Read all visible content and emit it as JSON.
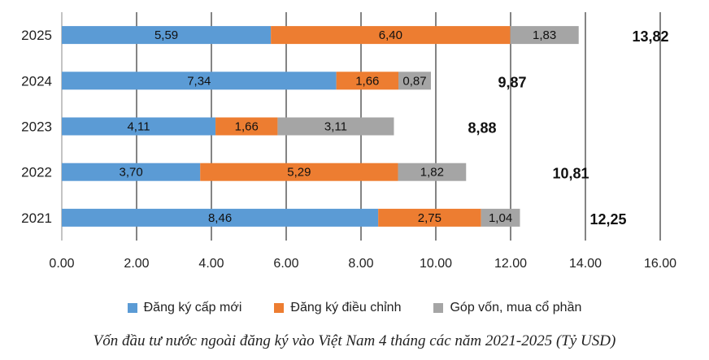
{
  "chart_data": {
    "type": "bar",
    "orientation": "horizontal",
    "stacked": true,
    "categories": [
      "2025",
      "2024",
      "2023",
      "2022",
      "2021"
    ],
    "series": [
      {
        "name": "Đăng ký cấp mới",
        "color": "#5b9bd5",
        "values": [
          5.59,
          7.34,
          4.11,
          3.7,
          8.46
        ],
        "labels": [
          "5,59",
          "7,34",
          "4,11",
          "3,70",
          "8,46"
        ]
      },
      {
        "name": "Đăng ký điều chỉnh",
        "color": "#ed7d31",
        "values": [
          6.4,
          1.66,
          1.66,
          5.29,
          2.75
        ],
        "labels": [
          "6,40",
          "1,66",
          "1,66",
          "5,29",
          "2,75"
        ]
      },
      {
        "name": "Góp vốn, mua cổ phần",
        "color": "#a5a5a5",
        "values": [
          1.83,
          0.87,
          3.11,
          1.82,
          1.04
        ],
        "labels": [
          "1,83",
          "0,87",
          "3,11",
          "1,82",
          "1,04"
        ]
      }
    ],
    "totals": [
      "13,82",
      "9,87",
      "8,88",
      "10,81",
      "12,25"
    ],
    "xlim": [
      0,
      16
    ],
    "xticks": [
      "0.00",
      "2.00",
      "4.00",
      "6.00",
      "8.00",
      "10.00",
      "12.00",
      "14.00",
      "16.00"
    ],
    "xtick_values": [
      0,
      2,
      4,
      6,
      8,
      10,
      12,
      14,
      16
    ],
    "legend_position": "bottom",
    "caption": "Vốn đầu tư nước ngoài đăng ký vào Việt Nam 4 tháng các năm 2021-2025 (Tỷ USD)"
  }
}
